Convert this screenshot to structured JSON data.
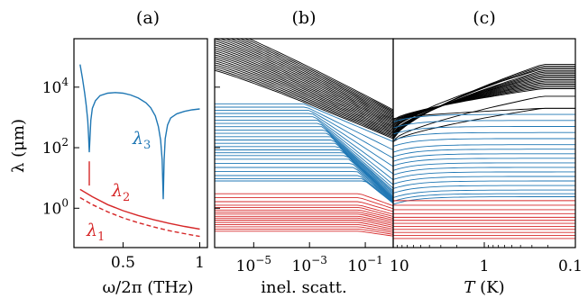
{
  "chart_data": [
    {
      "panel": "a",
      "type": "line",
      "title": "(a)",
      "ylabel": "λ (μm)",
      "xlabel": "ω/2π (THz)",
      "xlim": [
        0.18,
        1.05
      ],
      "ylim_log10": [
        -1.3,
        5.6
      ],
      "xticks": [
        {
          "value": 0.5,
          "label": "0.5"
        },
        {
          "value": 1.0,
          "label": "1"
        }
      ],
      "yticks": [
        {
          "exp": 0,
          "label": "10^0"
        },
        {
          "exp": 2,
          "label": "10^2"
        },
        {
          "exp": 4,
          "label": "10^4"
        }
      ],
      "curve_labels": {
        "lambda1": "λ1",
        "lambda2": "λ2",
        "lambda3": "λ3"
      },
      "colors": {
        "red": "#d62728",
        "blue": "#1f77b4"
      },
      "series": [
        {
          "id": "lambda1",
          "color": "#d62728",
          "style": "dashed",
          "x": [
            0.22,
            0.3,
            0.4,
            0.5,
            0.6,
            0.7,
            0.8,
            0.9,
            1.0
          ],
          "log10_y": [
            0.35,
            0.12,
            -0.12,
            -0.32,
            -0.48,
            -0.62,
            -0.74,
            -0.84,
            -0.93
          ]
        },
        {
          "id": "lambda2",
          "color": "#d62728",
          "style": "solid",
          "x": [
            0.22,
            0.3,
            0.4,
            0.5,
            0.6,
            0.7,
            0.8,
            0.9,
            1.0
          ],
          "log10_y": [
            0.62,
            0.38,
            0.12,
            -0.08,
            -0.24,
            -0.38,
            -0.5,
            -0.6,
            -0.69
          ]
        },
        {
          "id": "lambda2_stub",
          "color": "#d62728",
          "style": "solid",
          "x": [
            0.28,
            0.28
          ],
          "log10_y": [
            0.75,
            1.55
          ]
        },
        {
          "id": "lambda3",
          "color": "#1f77b4",
          "style": "solid",
          "x": [
            0.22,
            0.235,
            0.25,
            0.26,
            0.27,
            0.275,
            0.28,
            0.285,
            0.29,
            0.3,
            0.32,
            0.35,
            0.4,
            0.45,
            0.5,
            0.55,
            0.6,
            0.65,
            0.68,
            0.71,
            0.73,
            0.745,
            0.755,
            0.762,
            0.768,
            0.775,
            0.79,
            0.81,
            0.85,
            0.9,
            0.95,
            1.0
          ],
          "log10_y": [
            4.75,
            4.3,
            3.8,
            3.4,
            2.9,
            2.4,
            1.85,
            2.4,
            2.9,
            3.3,
            3.55,
            3.72,
            3.8,
            3.82,
            3.8,
            3.74,
            3.64,
            3.48,
            3.32,
            3.05,
            2.7,
            2.25,
            1.6,
            0.3,
            1.6,
            2.3,
            2.75,
            2.98,
            3.12,
            3.2,
            3.25,
            3.28
          ]
        }
      ]
    },
    {
      "panel": "b",
      "type": "line",
      "title": "(b)",
      "xlabel": "inel. scatt.",
      "xscale": "log",
      "xlim_log10": [
        -6.4,
        0.0
      ],
      "xticks": [
        {
          "exp": -5,
          "label": "10^-5"
        },
        {
          "exp": -3,
          "label": "10^-3"
        },
        {
          "exp": -1,
          "label": "10^-1"
        }
      ],
      "families": [
        {
          "color": "#000000",
          "description": "decreasing with scattering",
          "log10_y_left": [
            4.55,
            4.62,
            4.7,
            4.78,
            4.86,
            4.94,
            5.02,
            5.1,
            5.18,
            5.26,
            5.34,
            5.42,
            5.5,
            5.58,
            5.66,
            5.74,
            5.82,
            5.9,
            5.98,
            6.06
          ],
          "log10_y_right": [
            2.3,
            2.35,
            2.4,
            2.45,
            2.5,
            2.55,
            2.6,
            2.65,
            2.7,
            2.75,
            2.8,
            2.85,
            2.9,
            2.95,
            3.0,
            3.05,
            3.1,
            3.15,
            3.2,
            3.25
          ]
        },
        {
          "color": "#1f77b4",
          "description": "flat then decreasing",
          "log10_y_left": [
            3.45,
            3.33,
            3.22,
            3.1,
            2.98,
            2.86,
            2.74,
            2.62,
            2.5,
            2.38,
            2.26,
            2.14,
            2.02,
            1.9,
            1.8,
            1.7,
            1.55,
            1.4,
            1.25,
            1.1,
            0.98,
            0.9
          ],
          "log10_y_right": [
            2.2,
            1.9,
            1.6,
            1.3,
            1.05,
            0.85,
            0.7,
            0.6,
            0.55,
            0.5,
            0.45,
            0.4,
            0.36,
            0.33,
            0.3,
            0.28,
            0.26,
            0.24,
            0.22,
            0.2,
            0.18,
            0.16
          ]
        },
        {
          "color": "#d62728",
          "description": "nearly flat",
          "log10_y_left": [
            0.48,
            0.3,
            0.12,
            0.02,
            -0.1,
            -0.18,
            -0.28,
            -0.36,
            -0.46,
            -0.56,
            -0.66,
            -0.76
          ],
          "log10_y_right": [
            0.08,
            -0.05,
            -0.18,
            -0.28,
            -0.36,
            -0.44,
            -0.52,
            -0.6,
            -0.68,
            -0.76,
            -0.84,
            -0.92
          ]
        }
      ]
    },
    {
      "panel": "c",
      "type": "line",
      "title": "(c)",
      "xlabel_var": "T",
      "xlabel_unit": " (K)",
      "xscale": "log",
      "xdirection": "reversed",
      "xlim": [
        10,
        0.1
      ],
      "xticks": [
        {
          "value": 10,
          "label": "10"
        },
        {
          "value": 1,
          "label": "1"
        },
        {
          "value": 0.1,
          "label": "0.1"
        }
      ],
      "families": [
        {
          "color": "#000000",
          "description": "increasing as T decreases",
          "log10_y_left": [
            2.2,
            2.24,
            2.28,
            2.32,
            2.36,
            2.4,
            2.44,
            2.48,
            2.52,
            2.56,
            2.6,
            2.64,
            2.68,
            2.72,
            2.76,
            2.8,
            2.84,
            2.88,
            2.92,
            2.96
          ],
          "log10_y_right": [
            3.3,
            3.7,
            4.75,
            4.7,
            4.65,
            4.55,
            4.5,
            4.45,
            4.4,
            4.6,
            4.35,
            4.3,
            4.25,
            4.2,
            4.15,
            4.1,
            4.05,
            4.0,
            3.95,
            3.3
          ]
        },
        {
          "color": "#1f77b4",
          "description": "saturating",
          "log10_y": [
            3.1,
            2.9,
            2.7,
            2.5,
            2.3,
            2.1,
            1.95,
            1.8,
            1.65,
            1.5,
            1.35,
            1.2,
            1.05,
            0.9,
            0.75,
            0.6,
            0.48,
            0.38
          ]
        },
        {
          "color": "#d62728",
          "description": "flat",
          "log10_y": [
            0.25,
            0.1,
            -0.05,
            -0.18,
            -0.3,
            -0.4,
            -0.5,
            -0.6,
            -0.7,
            -0.8,
            -0.9,
            -1.0
          ]
        }
      ]
    }
  ]
}
